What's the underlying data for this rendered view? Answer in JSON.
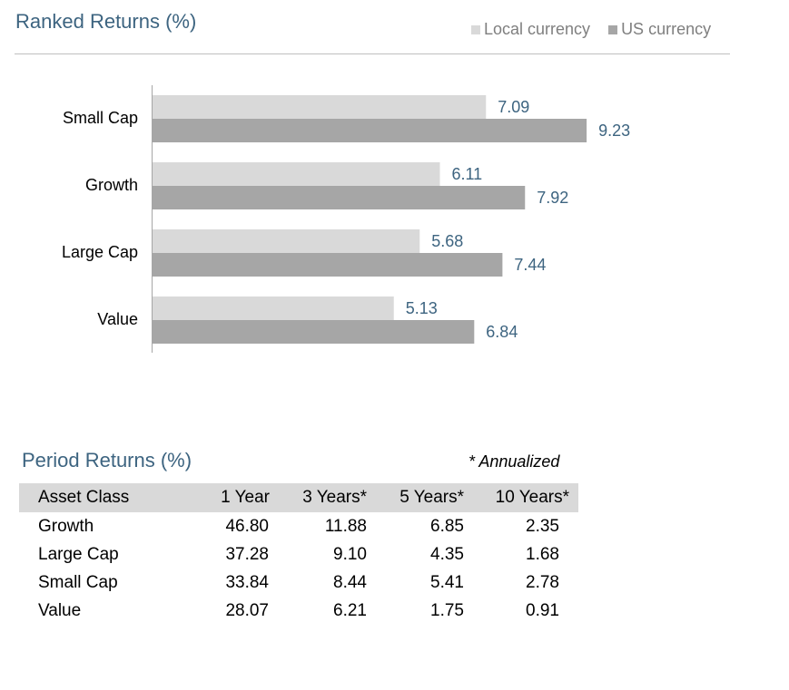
{
  "chart_data": {
    "type": "bar",
    "orientation": "horizontal",
    "title": "Ranked Returns (%)",
    "categories": [
      "Small Cap",
      "Growth",
      "Large Cap",
      "Value"
    ],
    "series": [
      {
        "name": "Local currency",
        "values": [
          7.09,
          6.11,
          5.68,
          5.13
        ],
        "color": "#d9d9d9"
      },
      {
        "name": "US currency",
        "values": [
          9.23,
          7.92,
          7.44,
          6.84
        ],
        "color": "#a6a6a6"
      }
    ],
    "xlim": [
      0,
      12
    ],
    "grid": false,
    "legend_position": "top-right",
    "label_color": "#3d6480"
  },
  "table": {
    "title": "Period Returns (%)",
    "note": "* Annualized",
    "headers": [
      "Asset Class",
      "1 Year",
      "3 Years*",
      "5 Years*",
      "10 Years*"
    ],
    "rows": [
      [
        "Growth",
        "46.80",
        "11.88",
        "6.85",
        "2.35"
      ],
      [
        "Large Cap",
        "37.28",
        "9.10",
        "4.35",
        "1.68"
      ],
      [
        "Small Cap",
        "33.84",
        "8.44",
        "5.41",
        "2.78"
      ],
      [
        "Value",
        "28.07",
        "6.21",
        "1.75",
        "0.91"
      ]
    ]
  }
}
